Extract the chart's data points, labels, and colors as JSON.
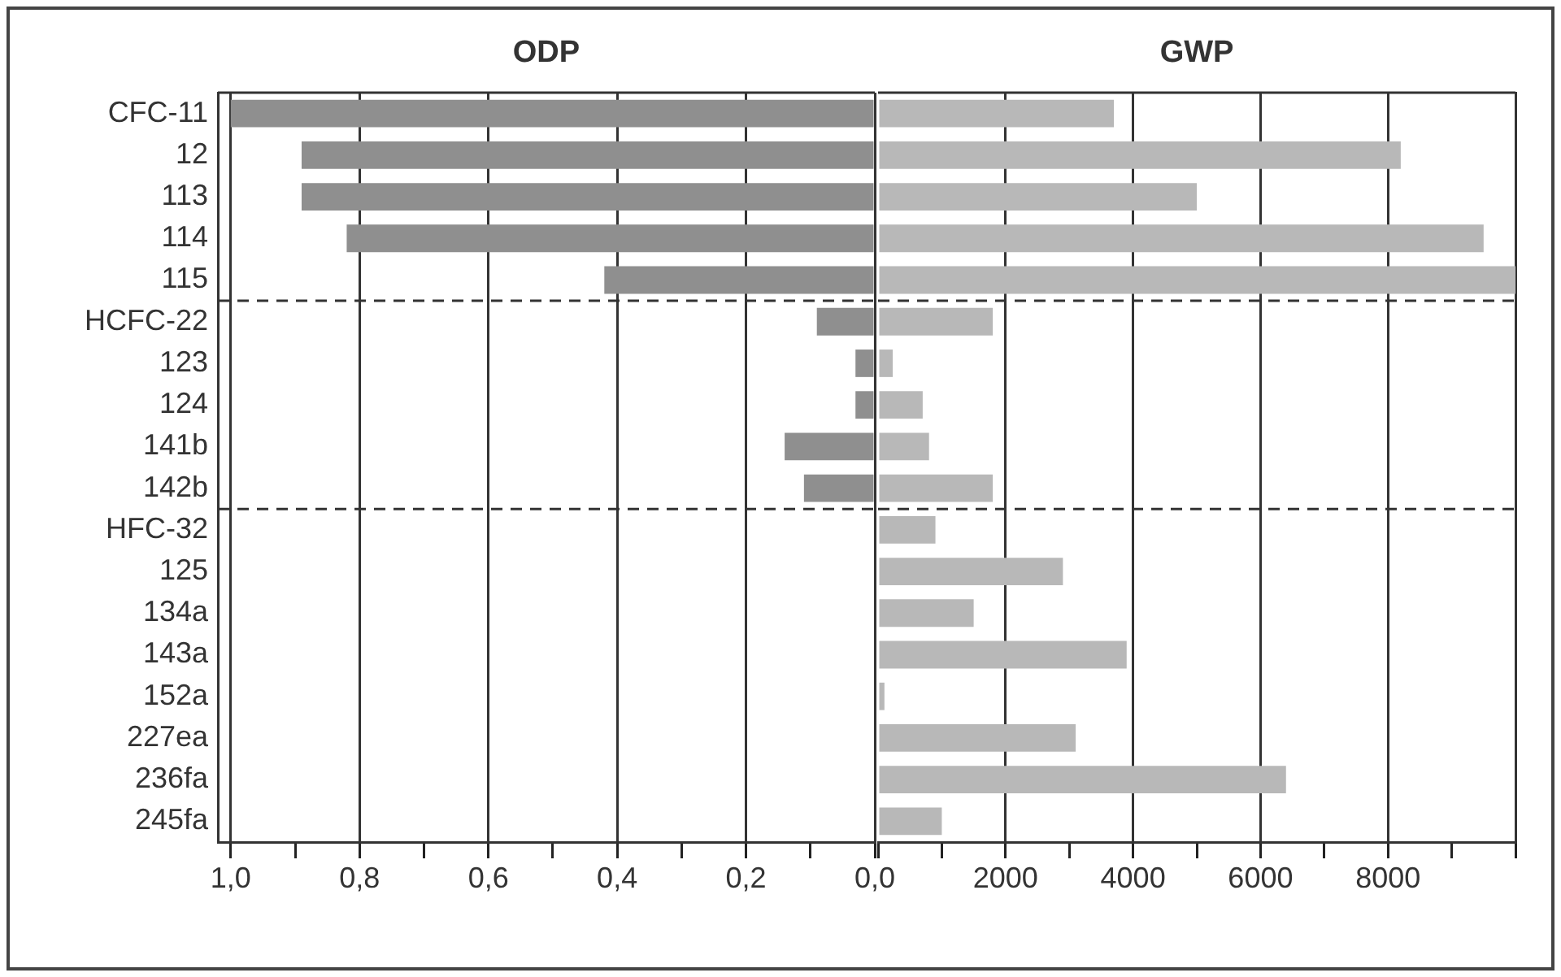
{
  "chart_data": [
    {
      "type": "bar",
      "orientation": "horizontal",
      "title": "ODP",
      "categories": [
        "CFC-11",
        "12",
        "113",
        "114",
        "115",
        "HCFC-22",
        "123",
        "124",
        "141b",
        "142b",
        "HFC-32",
        "125",
        "134a",
        "143a",
        "152a",
        "227ea",
        "236fa",
        "245fa"
      ],
      "values": [
        1.0,
        0.89,
        0.89,
        0.82,
        0.42,
        0.09,
        0.03,
        0.03,
        0.14,
        0.11,
        0,
        0,
        0,
        0,
        0,
        0,
        0,
        0
      ],
      "color": "#8f8f8f",
      "xlim": [
        1.02,
        0
      ],
      "xticks": [
        {
          "value": 1,
          "label": "1,0"
        },
        {
          "value": 0.9,
          "label": null
        },
        {
          "value": 0.8,
          "label": "0,8"
        },
        {
          "value": 0.7,
          "label": null
        },
        {
          "value": 0.6,
          "label": "0,6"
        },
        {
          "value": 0.5,
          "label": null
        },
        {
          "value": 0.4,
          "label": "0,4"
        },
        {
          "value": 0.3,
          "label": null
        },
        {
          "value": 0.2,
          "label": "0,2"
        },
        {
          "value": 0.1,
          "label": null
        },
        {
          "value": 0,
          "label": "0,0"
        }
      ],
      "grid": "x"
    },
    {
      "type": "bar",
      "orientation": "horizontal",
      "title": "GWP",
      "categories": [
        null,
        null,
        null,
        null,
        null,
        null,
        null,
        null,
        null,
        null,
        null,
        null,
        null,
        null,
        null,
        null,
        null,
        null
      ],
      "values": [
        3700,
        8200,
        5000,
        9500,
        10000,
        1800,
        230,
        700,
        800,
        1800,
        900,
        2900,
        1500,
        3900,
        100,
        3100,
        6400,
        1000
      ],
      "color": "#b8b8b8",
      "xlim": [
        0,
        10000
      ],
      "xticks": [
        {
          "value": 0,
          "label": null
        },
        {
          "value": 1000,
          "label": null
        },
        2000,
        {
          "value": 3000,
          "label": null
        },
        4000,
        {
          "value": 5000,
          "label": null
        },
        6000,
        {
          "value": 7000,
          "label": null
        },
        8000,
        {
          "value": 9000,
          "label": null
        },
        {
          "value": 10000,
          "label": null
        }
      ],
      "grid": "x",
      "tick_labels": "x"
    }
  ]
}
